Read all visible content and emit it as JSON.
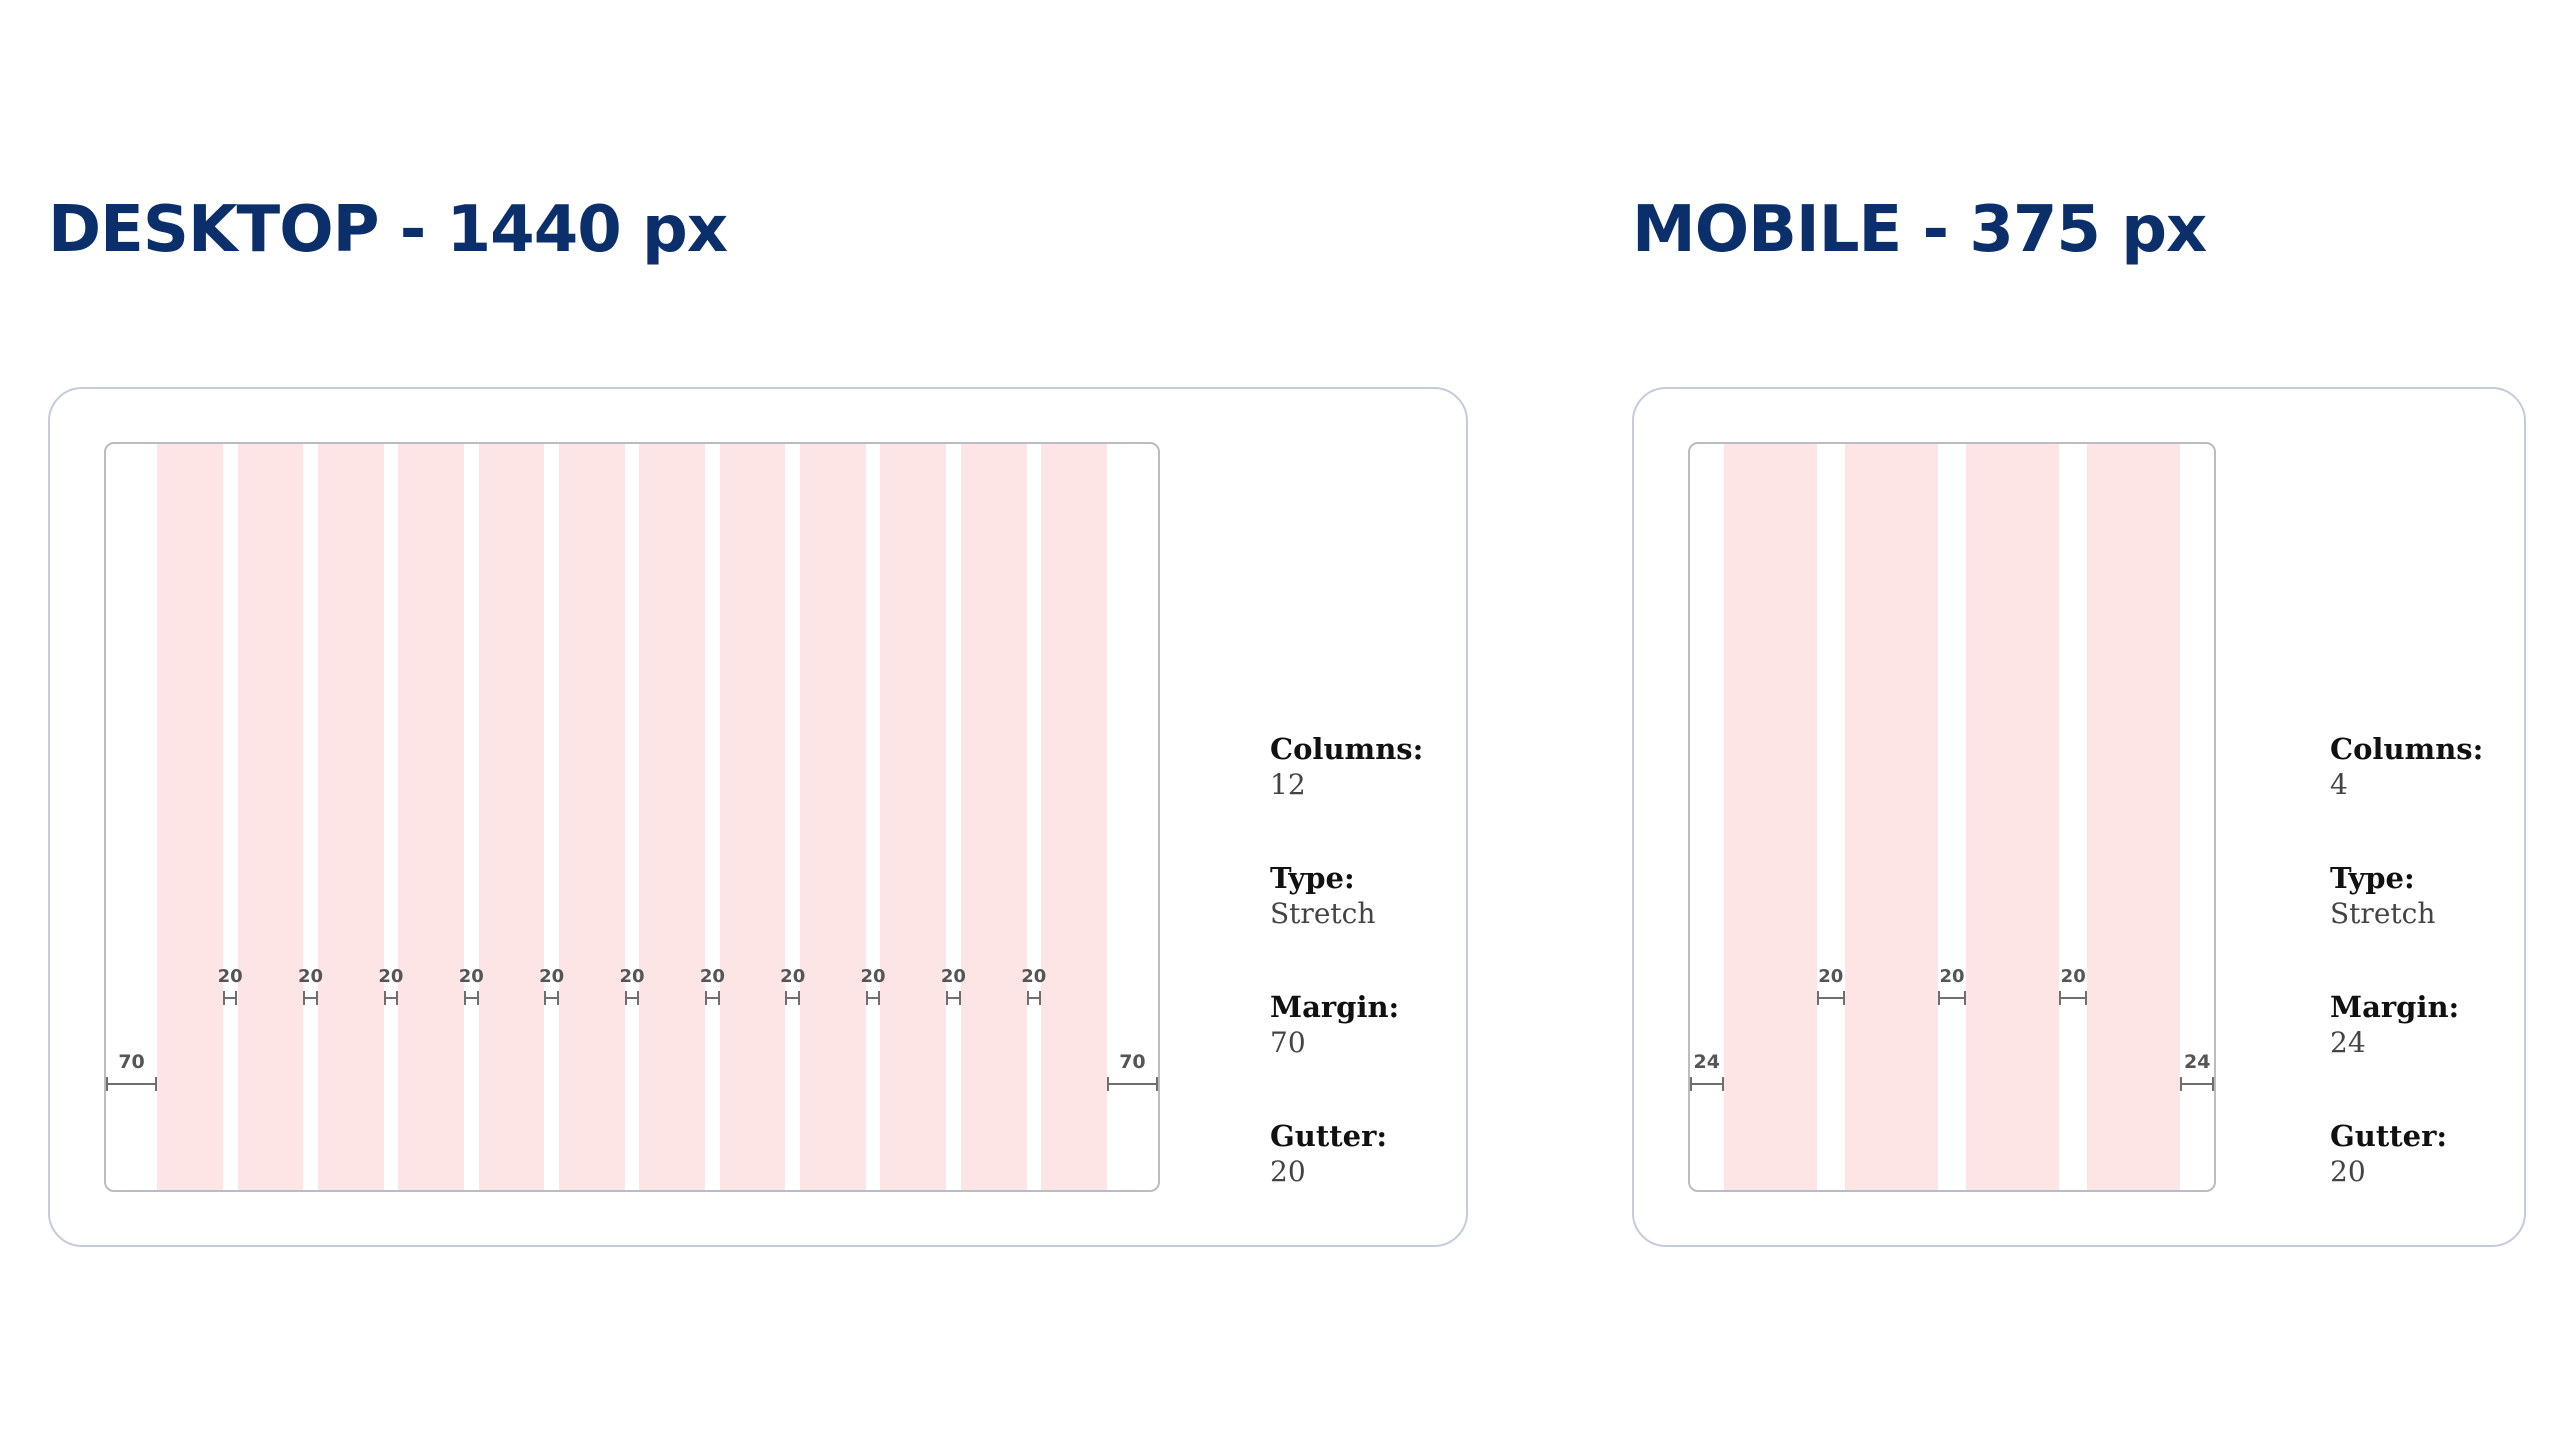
{
  "desktop": {
    "title": "DESKTOP - 1440 px",
    "grid": {
      "width": 1440,
      "columns": 12,
      "margin": 70,
      "gutter": 20
    },
    "margin_labels": [
      "70",
      "70"
    ],
    "gutter_labels": [
      "20",
      "20",
      "20",
      "20",
      "20",
      "20",
      "20",
      "20",
      "20",
      "20",
      "20"
    ],
    "specs": [
      {
        "label": "Columns:",
        "value": "12"
      },
      {
        "label": "Type:",
        "value": "Stretch"
      },
      {
        "label": "Margin:",
        "value": "70"
      },
      {
        "label": "Gutter:",
        "value": "20"
      }
    ]
  },
  "mobile": {
    "title": "MOBILE - 375 px",
    "grid": {
      "width": 375,
      "columns": 4,
      "margin": 24,
      "gutter": 20
    },
    "margin_labels": [
      "24",
      "24"
    ],
    "gutter_labels": [
      "20",
      "20",
      "20"
    ],
    "specs": [
      {
        "label": "Columns:",
        "value": "4"
      },
      {
        "label": "Type:",
        "value": "Stretch"
      },
      {
        "label": "Margin:",
        "value": "24"
      },
      {
        "label": "Gutter:",
        "value": "20"
      }
    ]
  },
  "colors": {
    "heading": "#0b2f6b",
    "column_fill": "#fde5e5",
    "card_border": "#c3ccdb",
    "frame_border": "#b9bcc4",
    "dimension_line": "#6f6f6f"
  }
}
